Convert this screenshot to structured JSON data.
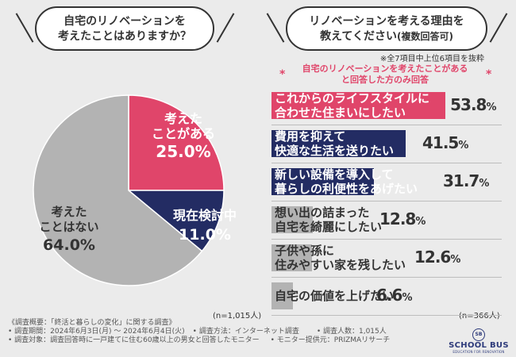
{
  "left_question": {
    "line1": "自宅のリノベーションを",
    "line2": "考えたことはありますか？"
  },
  "right_question": {
    "line1": "リノベーションを考える理由を",
    "line2": "教えてください",
    "line2_suffix": "(複数回答可)"
  },
  "note_top7": "※全7項目中上位6項目を抜粋",
  "note_filter": {
    "line1": "自宅のリノベーションを考えたことがある",
    "line2": "と回答した方のみ回答",
    "star": "*"
  },
  "pie_labels": {
    "thought": {
      "line1": "考えた",
      "line2": "ことがある",
      "value": "25.0%"
    },
    "considering": {
      "line1": "現在検討中",
      "value": "11.0%"
    },
    "never": {
      "line1": "考えた",
      "line2": "ことはない",
      "value": "64.0%"
    }
  },
  "n_left": "(n=1,015人)",
  "n_right": "(n=366人)",
  "bar_labels": [
    {
      "line1": "これからのライフスタイルに",
      "line2": "合わせた住まいにしたい",
      "value": "53.8",
      "unit": "%"
    },
    {
      "line1": "費用を抑えて",
      "line2": "快適な生活を送りたい",
      "value": "41.5",
      "unit": "%"
    },
    {
      "line1": "新しい設備を導入して",
      "line2": "暮らしの利便性をあげたい",
      "value": "31.7",
      "unit": "%"
    },
    {
      "line1": "想い出の詰まった",
      "line2": "自宅を綺麗にしたい",
      "value": "12.8",
      "unit": "%"
    },
    {
      "line1": "子供や孫に",
      "line2": "住みやすい家を残したい",
      "value": "12.6",
      "unit": "%"
    },
    {
      "line1": "自宅の価値を上げたい",
      "line2": "",
      "value": "6.6",
      "unit": "%"
    }
  ],
  "footer": {
    "title": "《調査概要：「終活と暮らしの変化」に関する調査》",
    "period": "• 調査期間：2024年6月3日(月) 〜 2024年6月4日(火)",
    "method": "• 調査方法：インターネット調査",
    "people": "• 調査人数：1,015人",
    "target": "• 調査対象：調査回答時に一戸建てに住む60歳以上の男女と回答したモニター",
    "provider": "• モニター提供元：PRIZMAリサーチ"
  },
  "logo": {
    "mark": "SB",
    "name": "SCHOOL BUS",
    "tag": "EDUCATION FOR RENOVATION"
  },
  "chart_data": [
    {
      "type": "pie",
      "title": "自宅のリノベーションを考えたことはありますか？",
      "categories": [
        "考えたことがある",
        "現在検討中",
        "考えたことはない"
      ],
      "values": [
        25.0,
        11.0,
        64.0
      ],
      "colors": [
        "#e0456a",
        "#232c63",
        "#b3b3b3"
      ],
      "n": "n=1,015人"
    },
    {
      "type": "bar",
      "orientation": "horizontal",
      "title": "リノベーションを考える理由を教えてください(複数回答可)",
      "categories": [
        "これからのライフスタイルに合わせた住まいにしたい",
        "費用を抑えて快適な生活を送りたい",
        "新しい設備を導入して暮らしの利便性をあげたい",
        "想い出の詰まった自宅を綺麗にしたい",
        "子供や孫に住みやすい家を残したい",
        "自宅の価値を上げたい"
      ],
      "values": [
        53.8,
        41.5,
        31.7,
        12.8,
        12.6,
        6.6
      ],
      "colors": [
        "#e0456a",
        "#232c63",
        "#232c63",
        "#b3b3b3",
        "#b3b3b3",
        "#b3b3b3"
      ],
      "xlim": [
        0,
        55
      ],
      "unit": "%",
      "n": "n=366人"
    }
  ]
}
